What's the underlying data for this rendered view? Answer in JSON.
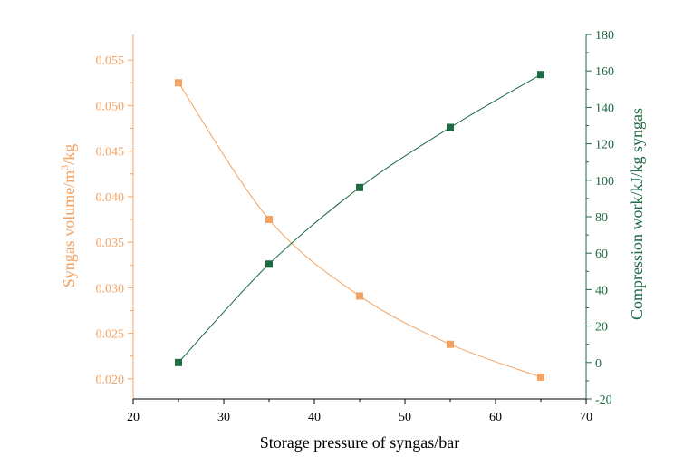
{
  "chart_data": {
    "type": "line",
    "xlabel": "Storage pressure of syngas/bar",
    "ylabel_left": "Syngas volume/m3/kg",
    "ylabel_left_parts": {
      "pre": "Syngas volume/m",
      "sup": "3",
      "post": "/kg"
    },
    "ylabel_right": "Compression work/kJ/kg syngas",
    "xlim": [
      20,
      70
    ],
    "ylim_left": [
      0.0178,
      0.0578
    ],
    "ylim_right": [
      -20,
      180
    ],
    "x_ticks": [
      "20",
      "30",
      "40",
      "50",
      "60",
      "70"
    ],
    "y_left_ticks": [
      "0.020",
      "0.025",
      "0.030",
      "0.035",
      "0.040",
      "0.045",
      "0.050",
      "0.055"
    ],
    "y_right_ticks": [
      "-20",
      "0",
      "20",
      "40",
      "60",
      "80",
      "100",
      "120",
      "140",
      "160",
      "180"
    ],
    "grid": false,
    "series": [
      {
        "axis": "left",
        "color": "#f4a261",
        "marker": "square",
        "x": [
          25,
          35,
          45,
          55,
          65
        ],
        "values": [
          0.0525,
          0.0375,
          0.0291,
          0.0238,
          0.0202
        ]
      },
      {
        "axis": "right",
        "color": "#1e6b43",
        "marker": "square",
        "x": [
          25,
          35,
          45,
          55,
          65
        ],
        "values": [
          0,
          54,
          96,
          129,
          158
        ]
      }
    ]
  }
}
